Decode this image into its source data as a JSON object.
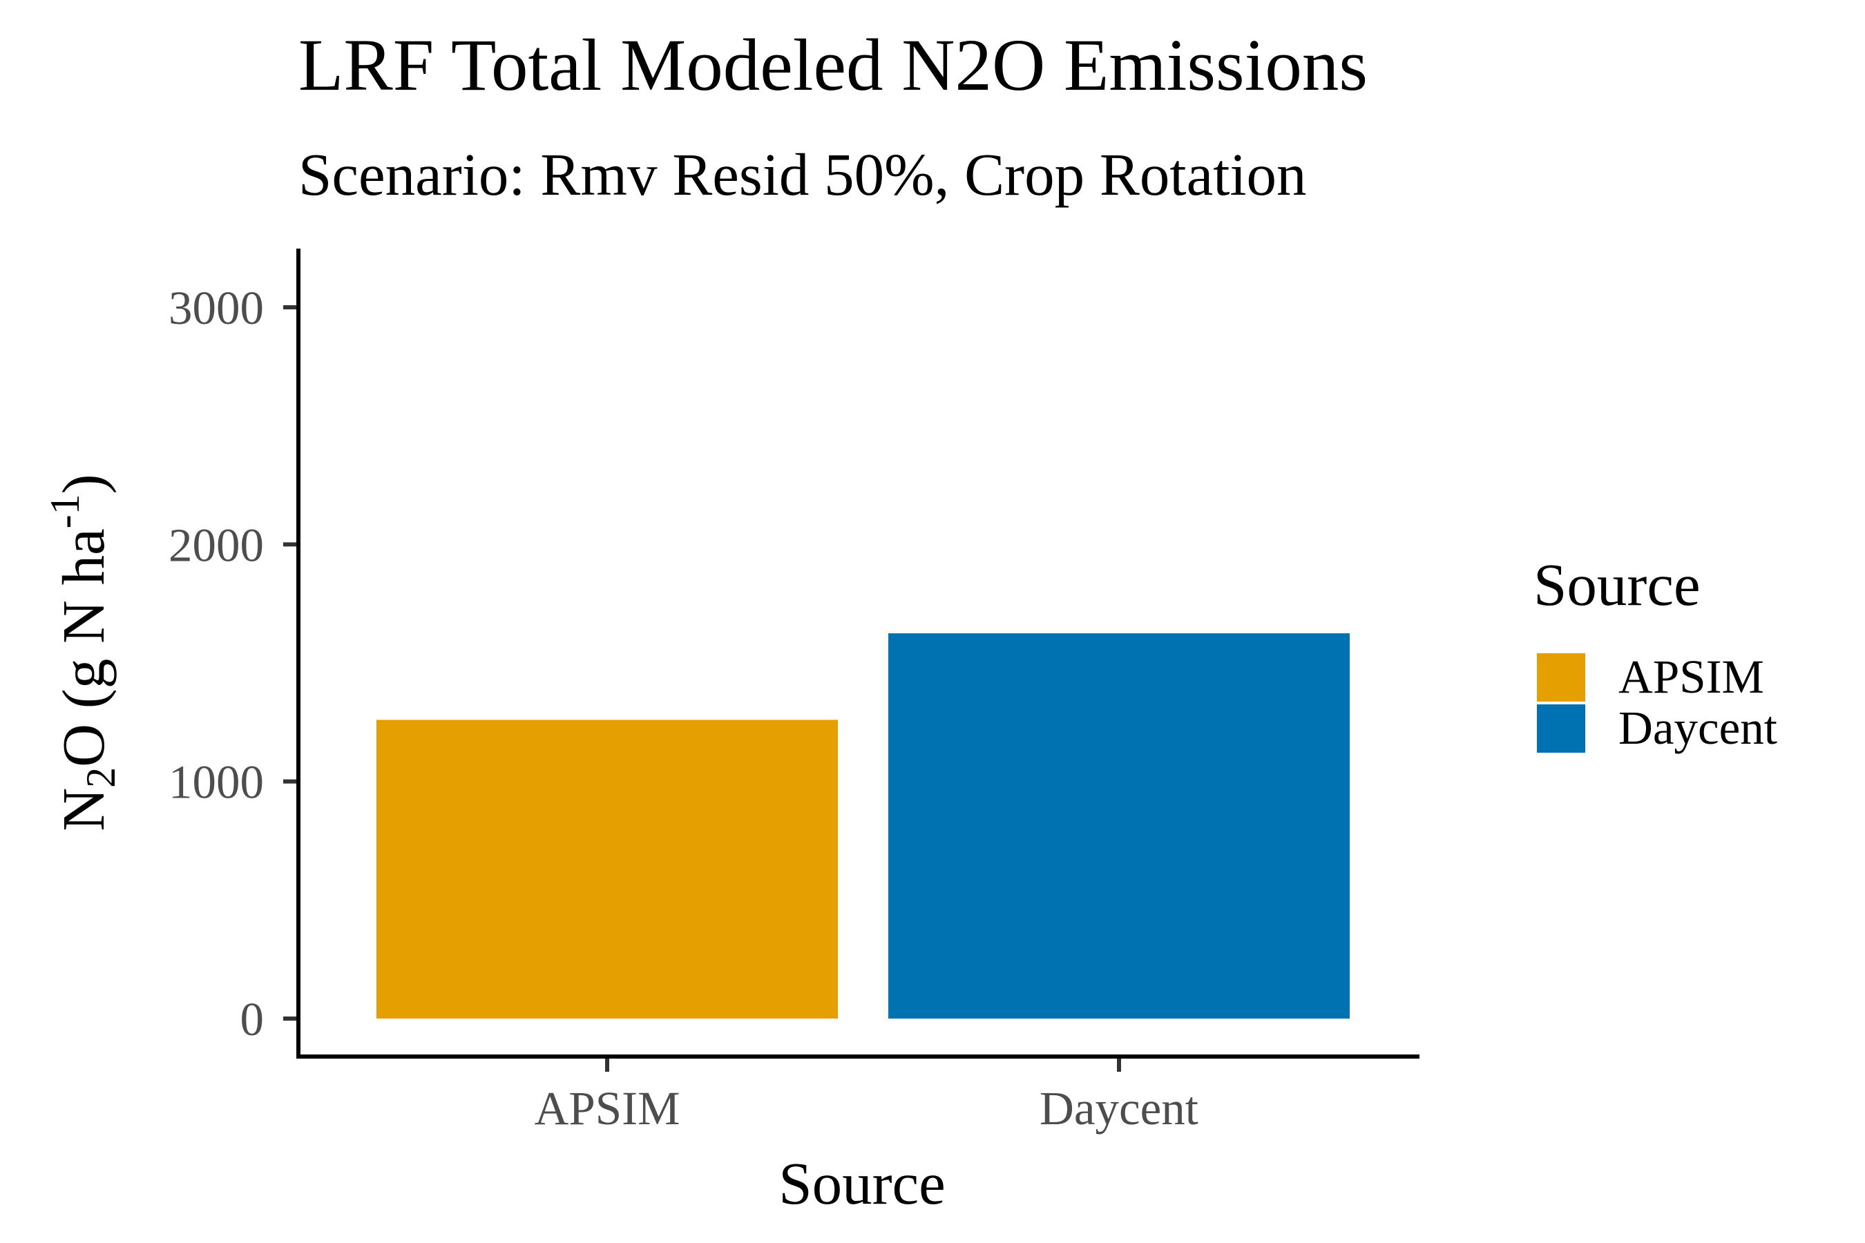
{
  "chart_data": {
    "type": "bar",
    "title": "LRF Total Modeled N2O Emissions",
    "subtitle": "Scenario: Rmv Resid 50%, Crop Rotation",
    "xlabel": "Source",
    "ylabel": {
      "main": "N",
      "sub": "2",
      "rest": "O (g N ha",
      "sup": "-1",
      "close": ")"
    },
    "categories": [
      "APSIM",
      "Daycent"
    ],
    "values": [
      1260,
      1625
    ],
    "colors": [
      "#E69F00",
      "#0072B2"
    ],
    "ylim": [
      0,
      3250
    ],
    "yticks": [
      0,
      1000,
      2000,
      3000
    ],
    "grid": false,
    "legend": {
      "title": "Source",
      "position": "right",
      "entries": [
        "APSIM",
        "Daycent"
      ]
    }
  }
}
